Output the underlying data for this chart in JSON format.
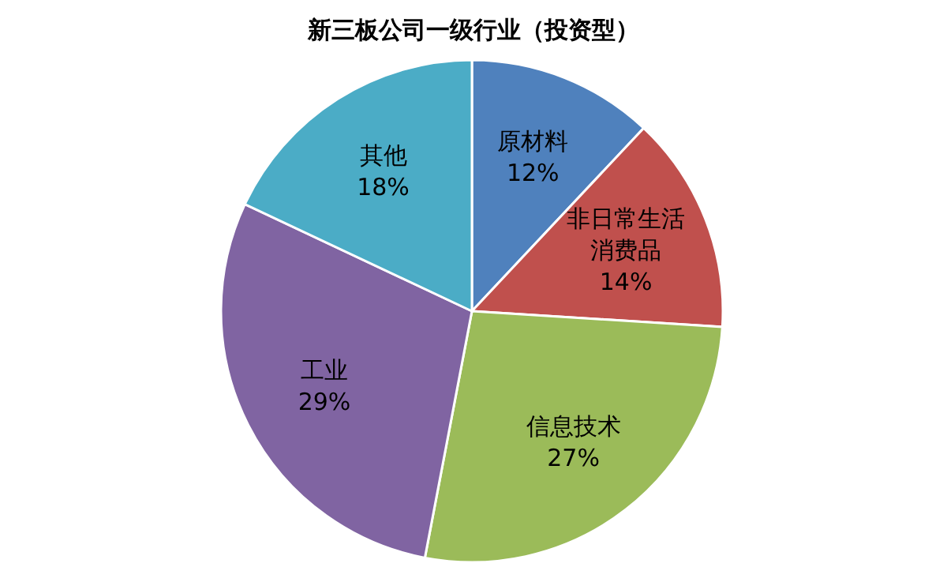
{
  "chart_data": {
    "type": "pie",
    "title": "新三板公司一级行业（投资型）",
    "categories": [
      "原材料",
      "非日常生活消费品",
      "信息技术",
      "工业",
      "其他"
    ],
    "values": [
      12,
      14,
      27,
      29,
      18
    ],
    "value_labels": [
      "12%",
      "14%",
      "27%",
      "29%",
      "18%"
    ],
    "colors": [
      "#4f81bd",
      "#c0504d",
      "#9bbb59",
      "#8064a2",
      "#4bacc6"
    ],
    "legend": false
  }
}
